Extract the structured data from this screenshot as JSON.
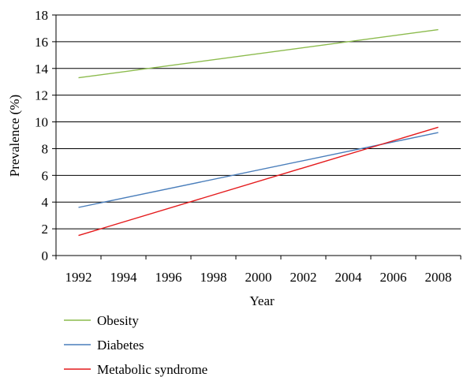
{
  "chart_data": {
    "type": "line",
    "xlabel": "Year",
    "ylabel": "Prevalence (%)",
    "x_ticks": [
      "1992",
      "1994",
      "1996",
      "1998",
      "2000",
      "2002",
      "2004",
      "2006",
      "2008"
    ],
    "y_ticks": [
      "0",
      "2",
      "4",
      "6",
      "8",
      "10",
      "12",
      "14",
      "16",
      "18"
    ],
    "xlim": [
      1991,
      2009
    ],
    "ylim": [
      0,
      18
    ],
    "grid": "horizontal",
    "legend_position": "bottom-left",
    "series": [
      {
        "name": "Obesity",
        "color": "#8cbb4d",
        "x": [
          1992,
          2008
        ],
        "y": [
          13.3,
          16.9
        ]
      },
      {
        "name": "Diabetes",
        "color": "#4a7ebb",
        "x": [
          1992,
          2008
        ],
        "y": [
          3.6,
          9.2
        ]
      },
      {
        "name": "Metabolic syndrome",
        "color": "#e41a1c",
        "x": [
          1992,
          2008
        ],
        "y": [
          1.5,
          9.6
        ]
      }
    ]
  }
}
